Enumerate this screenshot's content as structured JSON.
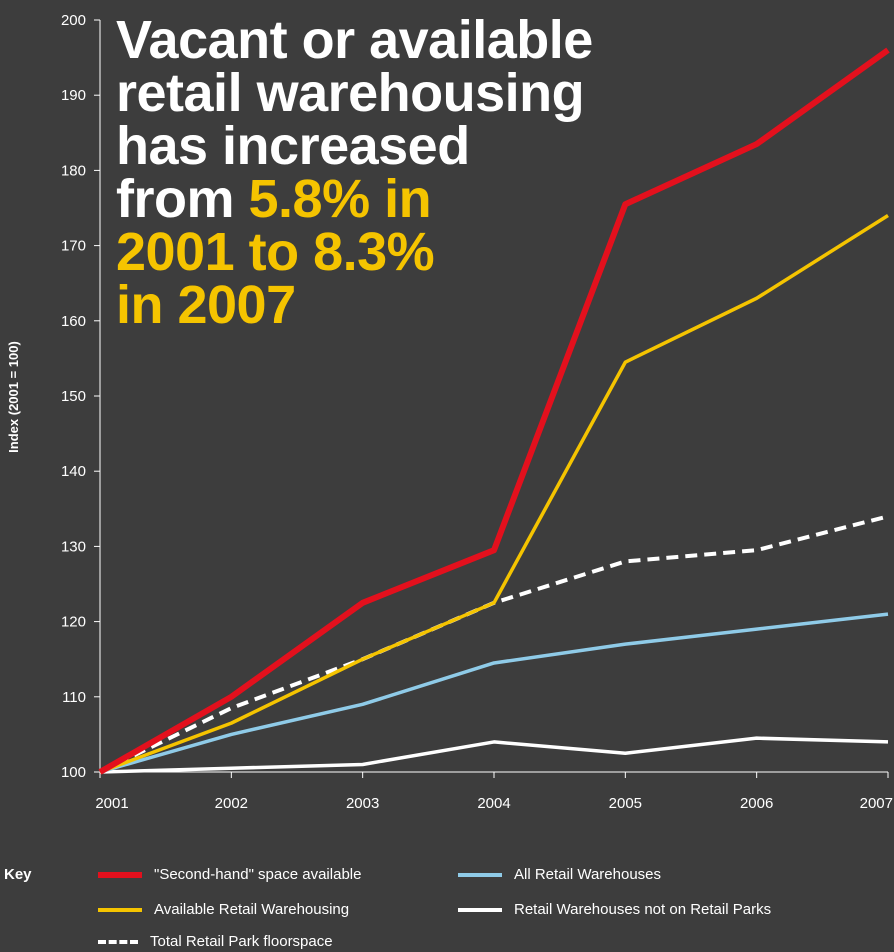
{
  "chart_data": {
    "type": "line",
    "headline": {
      "line1": "Vacant or available",
      "line2": "retail warehousing",
      "line3": "has increased",
      "line4_prefix": "from ",
      "line4_highlight": "5.8% in",
      "line5": "2001 to 8.3%",
      "line6": "in 2007"
    },
    "ylabel": "Index (2001 = 100)",
    "xlabel": "",
    "x": [
      "2001",
      "2002",
      "2003",
      "2004",
      "2005",
      "2006",
      "2007"
    ],
    "yticks": [
      "100",
      "110",
      "120",
      "130",
      "140",
      "150",
      "160",
      "170",
      "180",
      "190",
      "200"
    ],
    "ylim": [
      100,
      200
    ],
    "grid": false,
    "legend_title": "Key",
    "legend_position": "bottom",
    "series": [
      {
        "name": "\"Second-hand\" space available",
        "color": "#e3101d",
        "dash": "solid",
        "width": 6,
        "values": [
          100,
          110,
          122.5,
          129.5,
          175.5,
          183.5,
          196
        ]
      },
      {
        "name": "Available Retail Warehousing",
        "color": "#f5c400",
        "dash": "solid",
        "width": 3.5,
        "values": [
          100,
          106.5,
          115,
          122.5,
          154.5,
          163,
          174
        ]
      },
      {
        "name": "Total Retail Park floorspace",
        "color": "#ffffff",
        "dash": "dashed",
        "width": 4,
        "values": [
          100,
          108.5,
          115,
          122.5,
          128,
          129.5,
          134
        ]
      },
      {
        "name": "All Retail Warehouses",
        "color": "#8fcbe8",
        "dash": "solid",
        "width": 3.5,
        "values": [
          100,
          105,
          109,
          114.5,
          117,
          119,
          121
        ]
      },
      {
        "name": "Retail Warehouses not on Retail Parks",
        "color": "#ffffff",
        "dash": "solid",
        "width": 3.5,
        "values": [
          100,
          100.5,
          101,
          104,
          102.5,
          104.5,
          104
        ]
      }
    ]
  }
}
